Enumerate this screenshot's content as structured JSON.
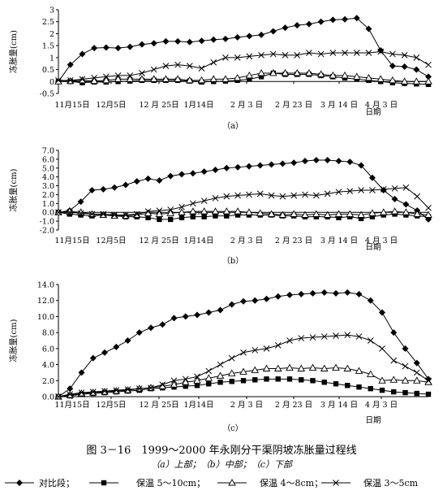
{
  "figure": {
    "title": "图 3－16　1999～2000 年永刚分干渠阴坡冻胀量过程线",
    "subtitle": "（a）上部；（b）中部；（c）下部"
  },
  "legend": [
    {
      "label": "对比段；",
      "marker": "diamond"
    },
    {
      "label": "保温 5～10cm；",
      "marker": "square"
    },
    {
      "label": "保温 4～8cm；",
      "marker": "triangle"
    },
    {
      "label": "保温 3～5cm",
      "marker": "cross"
    }
  ],
  "chart_data": [
    {
      "type": "line",
      "panel_label": "（a）",
      "ylabel": "冻胀量(cm)",
      "xlabel": "日期",
      "y_ticks": [
        "3",
        "2.5",
        "2",
        "1.5",
        "1",
        "0.5",
        "0",
        "-0.5"
      ],
      "ylim": [
        -0.5,
        3
      ],
      "x_ticks": [
        "11月15日",
        "12月5日",
        "12 月 25日",
        "1月14日",
        "2 月 3 日",
        "2 月 23 日",
        "3 月 14 日",
        "4 月 3 日"
      ],
      "series": [
        {
          "values": [
            0,
            0.7,
            1.15,
            1.4,
            1.42,
            1.4,
            1.45,
            1.55,
            1.6,
            1.68,
            1.68,
            1.65,
            1.7,
            1.75,
            1.78,
            1.85,
            1.9,
            1.95,
            2.1,
            2.25,
            2.35,
            2.4,
            2.5,
            2.58,
            2.6,
            2.65,
            2.2,
            1.3,
            0.65,
            0.62,
            0.5,
            0.2
          ]
        },
        {
          "values": [
            0,
            0,
            -0.05,
            -0.02,
            -0.02,
            0,
            0.02,
            0.05,
            0.05,
            0.05,
            0.05,
            0.02,
            -0.02,
            0,
            0.02,
            0.05,
            0.1,
            0.2,
            0.35,
            0.3,
            0.3,
            0.3,
            0.25,
            0.2,
            0.15,
            0.1,
            0.05,
            0,
            -0.05,
            -0.08,
            -0.1,
            -0.12
          ]
        },
        {
          "values": [
            0,
            0.02,
            0.05,
            0.02,
            0.05,
            0.1,
            0.1,
            0.1,
            0.1,
            0.1,
            0.1,
            0.05,
            0.05,
            0.1,
            0.1,
            0.15,
            0.25,
            0.35,
            0.35,
            0.35,
            0.35,
            0.35,
            0.3,
            0.25,
            0.25,
            0.2,
            0.15,
            0.1,
            0.05,
            0,
            0,
            0
          ]
        },
        {
          "values": [
            0.05,
            0.05,
            0.1,
            0.15,
            0.2,
            0.25,
            0.25,
            0.35,
            0.5,
            0.65,
            0.7,
            0.65,
            0.55,
            0.8,
            1,
            1,
            1.05,
            1.1,
            1.15,
            1.1,
            1.1,
            1.2,
            1.15,
            1.2,
            1.2,
            1.2,
            1.2,
            1.25,
            1.15,
            1.1,
            1,
            0.7
          ]
        }
      ]
    },
    {
      "type": "line",
      "panel_label": "（b）",
      "ylabel": "冻胀量(cm)",
      "xlabel": "日期",
      "y_ticks": [
        "7.0",
        "6.0",
        "5.0",
        "4.0",
        "3.0",
        "2.0",
        "1.0",
        "0.0",
        "-1.0",
        "-2.0"
      ],
      "ylim": [
        -2,
        7
      ],
      "x_ticks": [
        "11月15日",
        "12月5日",
        "12 月 25日",
        "1月14日",
        "2 月 3 日",
        "2 月 23 日",
        "3 月 14 日",
        "4 月 3 日"
      ],
      "series": [
        {
          "values": [
            0,
            0.2,
            1.2,
            2.5,
            2.6,
            2.8,
            3.1,
            3.5,
            3.8,
            3.6,
            4.1,
            4.3,
            4.4,
            4.6,
            4.8,
            5,
            5.1,
            5.2,
            5.3,
            5.4,
            5.5,
            5.6,
            5.8,
            5.9,
            5.9,
            5.8,
            5.7,
            5.3,
            3.9,
            2.5,
            1.5,
            0.9,
            0.2,
            -0.8
          ]
        },
        {
          "values": [
            0,
            -0.2,
            -0.3,
            -0.4,
            -0.3,
            -0.4,
            -0.5,
            -0.5,
            -0.6,
            -0.8,
            -0.8,
            -0.6,
            -0.5,
            -0.5,
            -0.4,
            -0.4,
            -0.3,
            -0.3,
            -0.3,
            -0.3,
            -0.4,
            -0.4,
            -0.5,
            -0.5,
            -0.5,
            -0.6,
            -0.5,
            -0.7,
            -0.5,
            -0.3,
            -0.2,
            -0.3,
            -0.4,
            -0.5
          ]
        },
        {
          "values": [
            0,
            0.1,
            0,
            -0.2,
            -0.3,
            -0.4,
            -0.4,
            -0.3,
            -0.1,
            -0.2,
            -0.1,
            0,
            0.1,
            0.1,
            0.1,
            0.1,
            0.1,
            0,
            -0.1,
            -0.2,
            -0.3,
            -0.2,
            -0.3,
            -0.2,
            -0.3,
            -0.2,
            -0.2,
            -0.3,
            -0.1,
            0,
            0.1,
            0,
            -0.2,
            -0.3
          ]
        },
        {
          "values": [
            0,
            0,
            -0.1,
            -0.2,
            -0.2,
            -0.3,
            -0.3,
            -0.2,
            0.1,
            0.2,
            0.3,
            0.6,
            1,
            1.3,
            1.6,
            1.8,
            1.9,
            2,
            2.1,
            1.9,
            1.8,
            1.9,
            2,
            1.9,
            2.1,
            2.3,
            2.4,
            2.5,
            2.5,
            2.6,
            2.7,
            2.8,
            1.8,
            0.5
          ]
        }
      ]
    },
    {
      "type": "line",
      "panel_label": "（c）",
      "ylabel": "冻胀量(cm)",
      "xlabel": "日期",
      "y_ticks": [
        "14.0",
        "12.0",
        "10.0",
        "8.0",
        "6.0",
        "4.0",
        "2.0",
        "0.0"
      ],
      "ylim": [
        0,
        14
      ],
      "x_ticks": [
        "11月15日",
        "12月5日",
        "12 月 25日",
        "1月14日",
        "2 月 3 日",
        "2 月 23 日",
        "3 月 14 日",
        "4 月 3 日"
      ],
      "series": [
        {
          "values": [
            0,
            1,
            3,
            4.8,
            5.5,
            6.2,
            7,
            8,
            8.6,
            9,
            9.8,
            10,
            10.2,
            10.5,
            10.8,
            11.5,
            11.9,
            12,
            12.2,
            12.5,
            12.7,
            12.8,
            12.9,
            13,
            12.9,
            13,
            12.8,
            12,
            10.5,
            8,
            6,
            4.2,
            2.2
          ]
        },
        {
          "values": [
            0,
            0.1,
            0.3,
            0.4,
            0.5,
            0.6,
            0.7,
            0.8,
            1,
            1.1,
            1.2,
            1.3,
            1.4,
            1.6,
            1.8,
            1.9,
            2,
            2.1,
            2.2,
            2.2,
            2.2,
            2.1,
            2,
            1.8,
            1.6,
            1.4,
            1.2,
            1,
            0.8,
            0.6,
            0.5,
            0.4,
            0.3
          ]
        },
        {
          "values": [
            0,
            0.2,
            0.4,
            0.5,
            0.6,
            0.7,
            0.8,
            1,
            1.1,
            1.3,
            1.5,
            1.8,
            2,
            2.3,
            2.6,
            2.9,
            3.1,
            3.3,
            3.5,
            3.5,
            3.6,
            3.5,
            3.6,
            3.5,
            3.6,
            3.5,
            3.2,
            2.8,
            2,
            2.1,
            2,
            2,
            1.8
          ]
        },
        {
          "values": [
            0,
            0.3,
            0.5,
            0.6,
            0.7,
            0.8,
            0.9,
            1,
            1.1,
            1.5,
            2,
            2.2,
            2.5,
            3.2,
            4,
            4.8,
            5.5,
            5.8,
            6,
            6.4,
            7,
            7.3,
            7.4,
            7.5,
            7.6,
            7.7,
            7.5,
            7,
            6,
            4.5,
            3.8,
            3,
            2
          ]
        }
      ]
    }
  ]
}
